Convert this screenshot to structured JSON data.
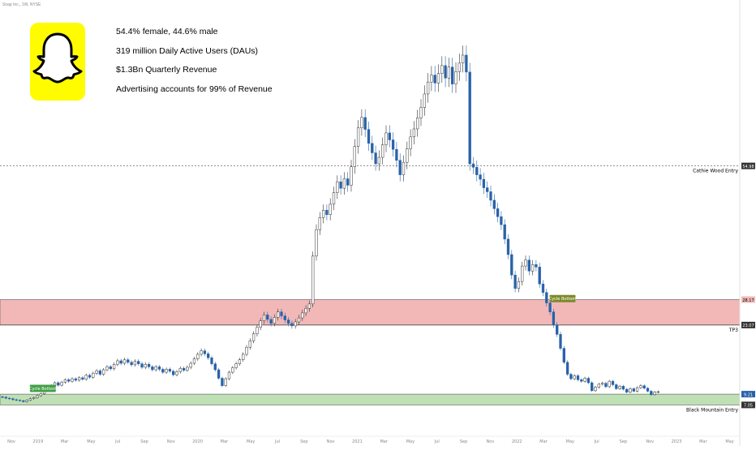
{
  "chart_header": {
    "symbol_line": "Snap Inc., 1W, NYSE"
  },
  "brand": {
    "logo_name": "snapchat-ghost-logo",
    "logo_bg": "#FFFC00"
  },
  "stats": [
    "54.4% female, 44.6% male",
    "319 million Daily Active Users (DAUs)",
    "$1.3Bn Quarterly Revenue",
    "Advertising accounts for 99% of Revenue"
  ],
  "chart_data": {
    "type": "candlestick",
    "x_tick_labels": [
      "Nov",
      "2019",
      "Mar",
      "May",
      "Jul",
      "Sep",
      "Nov",
      "2020",
      "Mar",
      "May",
      "Jul",
      "Sep",
      "Nov",
      "2021",
      "Mar",
      "May",
      "Jul",
      "Sep",
      "Nov",
      "2022",
      "Mar",
      "May",
      "Jul",
      "Sep",
      "Nov",
      "2023",
      "Mar",
      "May"
    ],
    "ylim": [
      5,
      85
    ],
    "grid": false,
    "up_color": "#ffffff",
    "down_color": "#2962a8",
    "zones": [
      {
        "label": "",
        "from": 23.07,
        "to": 28.17,
        "color": "#f2b8b8"
      },
      {
        "label": "Black Mountain Entry",
        "from": 7.05,
        "to": 9.21,
        "color": "#bfe0b5"
      }
    ],
    "levels": [
      {
        "label": "Cathie Wood Entry",
        "value": 54.98,
        "style": "dashed"
      },
      {
        "label": "TP3",
        "value": 23.07,
        "style": "solid"
      }
    ],
    "price_labels": [
      "54.98",
      "28.17",
      "23.07",
      "9.21",
      "7.05"
    ],
    "markers": [
      {
        "text": "Cycle Bottom",
        "x_index": 6,
        "value": 9.4,
        "color": "#43a047"
      },
      {
        "text": "Cycle Bottom",
        "x_index": 155,
        "value": 27.4,
        "color": "#7c8a2b"
      }
    ],
    "closes": [
      8.6,
      8.4,
      8.3,
      8.1,
      8.0,
      7.9,
      7.7,
      8.0,
      8.3,
      8.5,
      8.9,
      9.3,
      9.9,
      10.4,
      10.9,
      11.5,
      11.0,
      11.6,
      12.1,
      11.8,
      12.3,
      12.0,
      12.5,
      12.2,
      13.0,
      12.6,
      13.4,
      13.9,
      13.2,
      14.1,
      14.7,
      14.3,
      15.2,
      15.9,
      15.4,
      16.1,
      15.6,
      15.1,
      15.8,
      15.3,
      14.6,
      15.2,
      14.7,
      14.1,
      14.7,
      14.2,
      13.6,
      14.2,
      13.8,
      13.1,
      13.7,
      14.4,
      14.0,
      14.6,
      15.4,
      16.3,
      17.2,
      17.9,
      17.3,
      16.5,
      15.3,
      14.1,
      12.4,
      10.9,
      12.3,
      13.6,
      14.5,
      15.3,
      16.1,
      17.2,
      18.6,
      19.9,
      21.3,
      22.6,
      23.9,
      25.1,
      24.2,
      23.4,
      24.6,
      25.7,
      24.9,
      24.1,
      23.4,
      22.9,
      23.7,
      24.5,
      25.5,
      26.4,
      27.3,
      36.9,
      42.2,
      44.6,
      46.1,
      45.2,
      47.3,
      49.6,
      51.8,
      50.5,
      52.4,
      51.1,
      54.8,
      58.9,
      62.6,
      64.7,
      62.3,
      59.5,
      57.6,
      55.4,
      56.7,
      59.2,
      61.6,
      60.2,
      58.3,
      56.1,
      53.2,
      55.7,
      58.4,
      60.8,
      62.4,
      64.6,
      66.7,
      69.4,
      71.8,
      73.2,
      71.6,
      73.5,
      75.1,
      72.6,
      74.8,
      71.4,
      73.9,
      75.6,
      77.2,
      73.8,
      55.4,
      54.7,
      53.2,
      52.3,
      50.6,
      49.8,
      48.1,
      46.4,
      44.8,
      43.2,
      40.3,
      37.2,
      33.1,
      30.4,
      31.8,
      34.9,
      36.1,
      33.9,
      35.2,
      34.7,
      31.3,
      29.6,
      27.5,
      25.7,
      23.1,
      21.2,
      18.4,
      15.6,
      13.2,
      12.3,
      12.9,
      12.1,
      11.8,
      12.4,
      11.5,
      9.9,
      10.6,
      11.2,
      11.4,
      10.7,
      11.8,
      11.1,
      10.3,
      10.8,
      10.2,
      9.6,
      10.3,
      9.8,
      10.5,
      10.9,
      10.4,
      9.8,
      9.1,
      9.6,
      9.7
    ]
  }
}
